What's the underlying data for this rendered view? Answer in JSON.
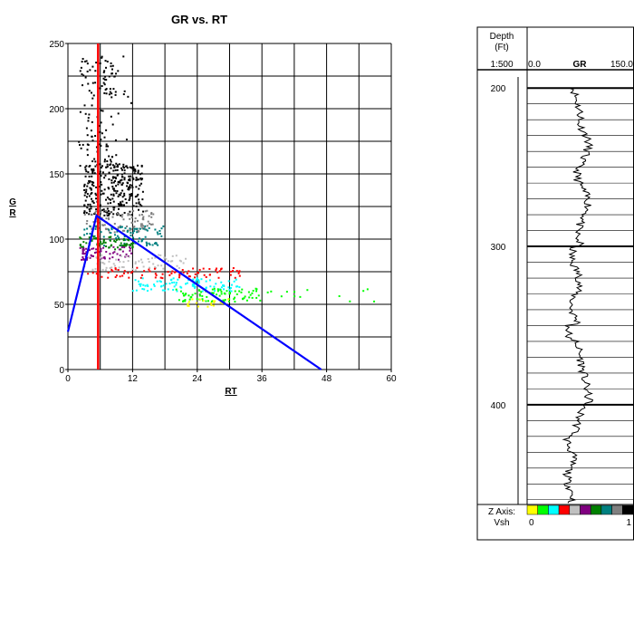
{
  "chart_data": [
    {
      "type": "scatter",
      "title": "GR vs. RT",
      "xlabel": "RT",
      "ylabel": "GR",
      "xlim": [
        0,
        60
      ],
      "ylim": [
        0,
        250
      ],
      "xticks": [
        0,
        12,
        24,
        36,
        48,
        60
      ],
      "yticks": [
        0,
        50,
        100,
        150,
        200,
        250
      ],
      "grid": true,
      "clusters": [
        {
          "color": "#000000",
          "x_range": [
            2,
            16
          ],
          "y_range": [
            115,
            240
          ]
        },
        {
          "color": "#808080",
          "x_range": [
            3,
            16
          ],
          "y_range": [
            105,
            122
          ]
        },
        {
          "color": "#008080",
          "x_range": [
            3,
            18
          ],
          "y_range": [
            95,
            110
          ]
        },
        {
          "color": "#008000",
          "x_range": [
            2,
            13
          ],
          "y_range": [
            92,
            102
          ]
        },
        {
          "color": "#800080",
          "x_range": [
            2,
            12
          ],
          "y_range": [
            84,
            94
          ]
        },
        {
          "color": "#c0c0c0",
          "x_range": [
            3,
            22
          ],
          "y_range": [
            76,
            88
          ]
        },
        {
          "color": "#ff0000",
          "x_range": [
            3,
            32
          ],
          "y_range": [
            70,
            78
          ]
        },
        {
          "color": "#00ffff",
          "x_range": [
            12,
            32
          ],
          "y_range": [
            60,
            70
          ]
        },
        {
          "color": "#00ff00",
          "x_range": [
            20,
            57
          ],
          "y_range": [
            52,
            62
          ]
        },
        {
          "color": "#ffff00",
          "x_range": [
            22,
            30
          ],
          "y_range": [
            48,
            54
          ]
        }
      ],
      "lines": [
        {
          "color": "#ff0000",
          "points": [
            [
              5.6,
              0
            ],
            [
              5.6,
              250
            ]
          ]
        },
        {
          "color": "#0000ff",
          "points": [
            [
              0,
              29
            ],
            [
              5.3,
              118
            ],
            [
              47,
              0
            ]
          ]
        }
      ]
    },
    {
      "type": "line",
      "header": {
        "depth_label": "Depth",
        "depth_unit": "(Ft)",
        "scale": "1:500",
        "curve": "GR",
        "min": "0.0",
        "max": "150.0"
      },
      "ylim": [
        193,
        463
      ],
      "depth_ticks": [
        200,
        300,
        400
      ],
      "xlim": [
        0,
        150
      ],
      "footer": {
        "z_axis_label": "Z Axis:",
        "z_name": "Vsh",
        "z_min": "0",
        "z_max": "1",
        "colors": [
          "#ffff00",
          "#00ff00",
          "#00ffff",
          "#ff0000",
          "#c0c0c0",
          "#800080",
          "#008000",
          "#008080",
          "#808080",
          "#000000"
        ]
      }
    }
  ]
}
